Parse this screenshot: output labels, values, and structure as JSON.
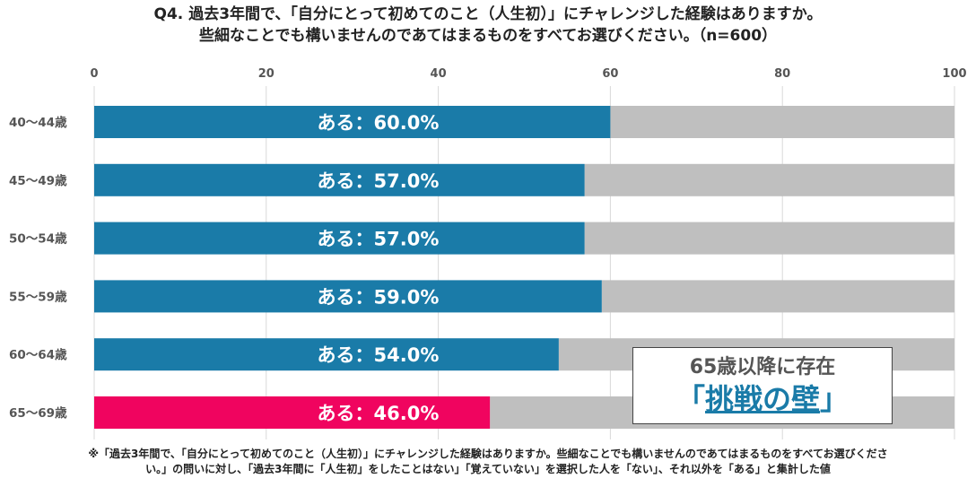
{
  "title": {
    "line1": "Q4.  過去3年間で、「自分にとって初めてのこと（人生初）」にチャレンジした経験はありますか。",
    "line2": "些細なことでも構いませんのであてはまるものをすべてお選びください。（n=600）"
  },
  "chart_data": {
    "type": "bar",
    "orientation": "horizontal",
    "stacked": true,
    "categories": [
      "40〜44歳",
      "45〜49歳",
      "50〜54歳",
      "55〜59歳",
      "60〜64歳",
      "65〜69歳"
    ],
    "series": [
      {
        "name": "ある",
        "values": [
          60.0,
          57.0,
          57.0,
          59.0,
          54.0,
          46.0
        ]
      },
      {
        "values": [
          40.0,
          43.0,
          43.0,
          41.0,
          46.0,
          54.0
        ]
      }
    ],
    "data_labels": [
      "ある：60.0%",
      "ある：57.0%",
      "ある：57.0%",
      "ある：59.0%",
      "ある：54.0%",
      "ある：46.0%"
    ],
    "xlim": [
      0,
      100
    ],
    "xticks": [
      "0",
      "20",
      "40",
      "60",
      "80",
      "100"
    ],
    "axis_position": "top",
    "grid": true,
    "colors": {
      "bar": "#1a7ba8",
      "highlight_bar": "#f0045f",
      "remainder": "#bfbfbf",
      "grid": "#d9d9d9"
    },
    "highlight_index": 5
  },
  "callout": {
    "line1": "65歳以降に存在",
    "open": "「",
    "emphasis": "挑戦の壁",
    "close": "」"
  },
  "note": {
    "line1": "※「過去3年間で、「自分にとって初めてのこと（人生初）」にチャレンジした経験はありますか。些細なことでも構いませんのであてはまるものをすべてお選びくださ",
    "line2": "い。」の問いに対し、「過去3年間に「人生初」をしたことはない」「覚えていない」を選択した人を「ない」、それ以外を「ある」と集計した値"
  }
}
